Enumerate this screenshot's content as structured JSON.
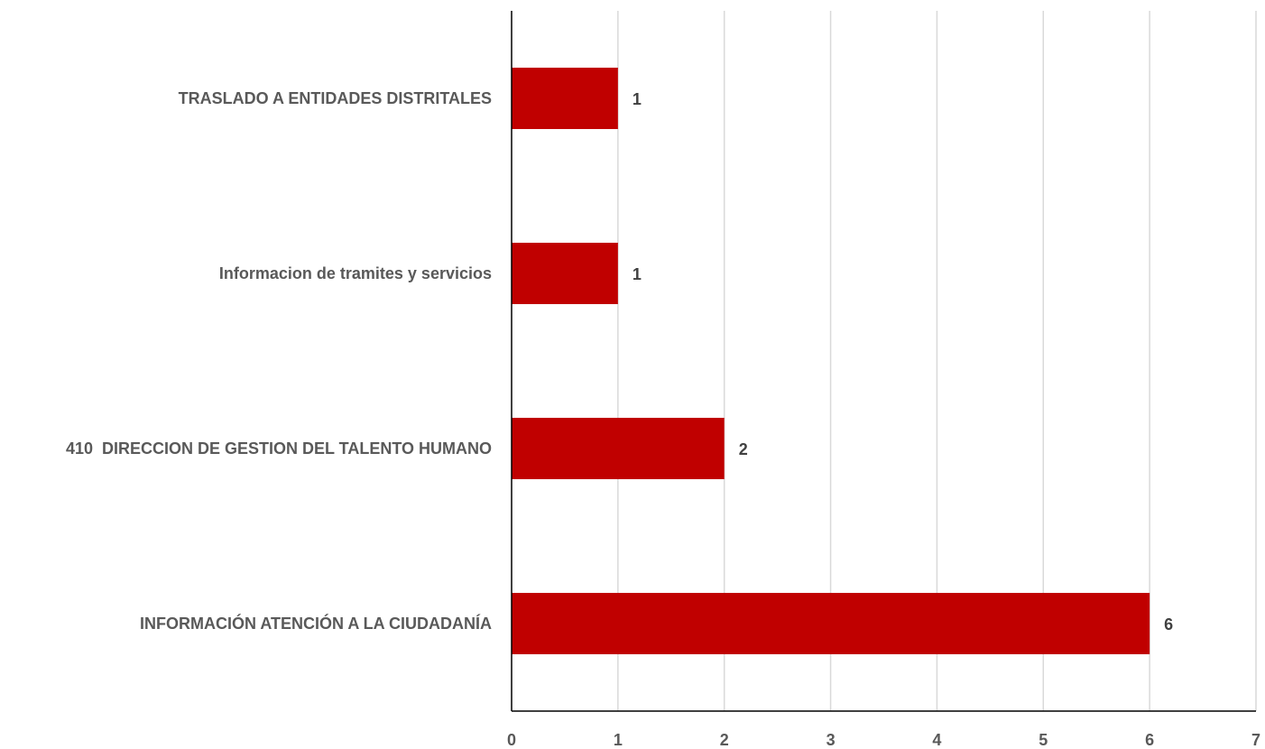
{
  "chart_data": {
    "type": "bar",
    "orientation": "horizontal",
    "title": "",
    "xlabel": "",
    "ylabel": "",
    "categories": [
      "TRASLADO A ENTIDADES DISTRITALES",
      "Informacion de tramites y servicios",
      "410  DIRECCION DE GESTION DEL TALENTO HUMANO",
      "INFORMACIÓN ATENCIÓN A LA CIUDADANÍA"
    ],
    "values": [
      1,
      1,
      2,
      6
    ],
    "xlim": [
      0,
      7
    ],
    "ticks": [
      "0",
      "1",
      "2",
      "3",
      "4",
      "5",
      "6",
      "7"
    ],
    "grid": "vertical",
    "legend": "none",
    "bar_color": "#C00000",
    "grid_color": "#D9D9D9",
    "axis_color": "#000000"
  }
}
